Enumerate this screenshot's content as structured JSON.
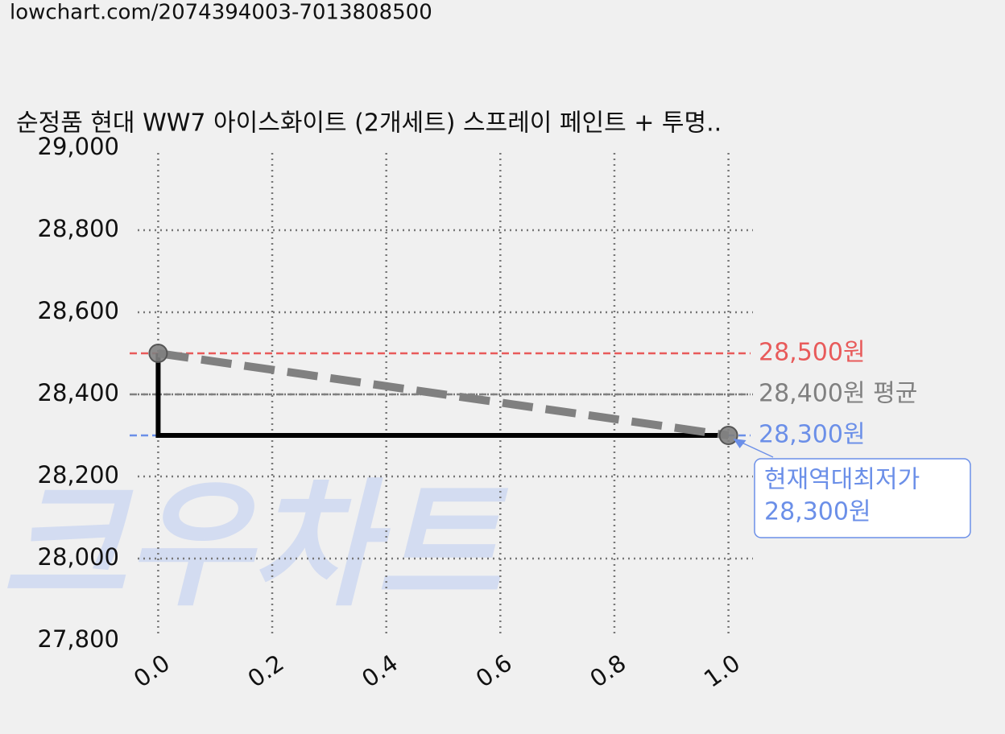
{
  "url": "lowchart.com/2074394003-7013808500",
  "chart_data": {
    "type": "line",
    "title": "순정품 현대 WW7 아이스화이트 (2개세트) 스프레이 페인트 + 투명..",
    "watermark": "크우차트",
    "xlim": [
      -0.05,
      1.05
    ],
    "xticks": [
      {
        "value": 0,
        "label": "0.0"
      },
      {
        "value": 0.2,
        "label": "0.2"
      },
      {
        "value": 0.4,
        "label": "0.4"
      },
      {
        "value": 0.6,
        "label": "0.6"
      },
      {
        "value": 0.8,
        "label": "0.8"
      },
      {
        "value": 1,
        "label": "1.0"
      }
    ],
    "ylim": [
      27800,
      29000
    ],
    "yticks": [
      {
        "value": 27800,
        "label": "27,800"
      },
      {
        "value": 28000,
        "label": "28,000"
      },
      {
        "value": 28200,
        "label": "28,200"
      },
      {
        "value": 28400,
        "label": "28,400"
      },
      {
        "value": 28600,
        "label": "28,600"
      },
      {
        "value": 28800,
        "label": "28,800"
      },
      {
        "value": 29000,
        "label": "29,000"
      }
    ],
    "grid": true,
    "series": [
      {
        "color": "#000000",
        "style": "solid",
        "x": [
          0,
          0,
          1
        ],
        "values": [
          28500,
          28300,
          28300
        ]
      },
      {
        "color": "#808080",
        "style": "dashed",
        "markers": true,
        "x": [
          0,
          1
        ],
        "values": [
          28500,
          28300
        ]
      }
    ],
    "hlines": [
      {
        "value": 28500,
        "label": "28,500원",
        "color": "#e85a5a"
      },
      {
        "value": 28400,
        "label": "28,400원 평균",
        "color": "#808080"
      },
      {
        "value": 28300,
        "label": "28,300원",
        "color": "#6b8fe8"
      }
    ],
    "annotation": {
      "x": 1,
      "y": 28300,
      "lines": [
        "현재역대최저가",
        "28,300원"
      ],
      "color": "#6b8fe8"
    }
  }
}
